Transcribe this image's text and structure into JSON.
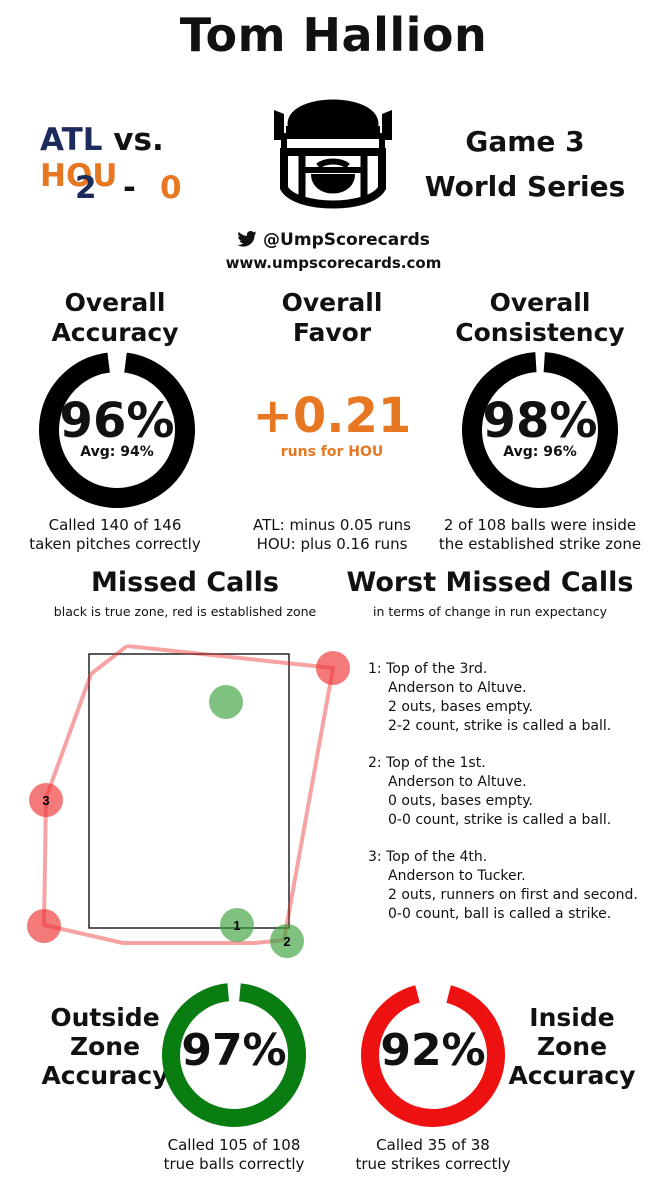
{
  "title": "Tom Hallion",
  "matchup": {
    "away": "ATL",
    "vs": "vs.",
    "home": "HOU",
    "away_score": "2",
    "dash": "-",
    "home_score": "0",
    "away_color": "#1d2a5c",
    "home_color": "#e87722"
  },
  "game": {
    "line1": "Game 3",
    "line2": "World Series"
  },
  "social": {
    "handle": "@UmpScorecards",
    "website": "www.umpscorecards.com",
    "icon": "twitter-bird-icon"
  },
  "accuracy": {
    "title_line1": "Overall",
    "title_line2": "Accuracy",
    "value": "96%",
    "avg": "Avg: 94%",
    "caption_line1": "Called 140 of 146",
    "caption_line2": "taken pitches correctly",
    "fraction": 0.96
  },
  "favor": {
    "title_line1": "Overall",
    "title_line2": "Favor",
    "value": "+0.21",
    "unit": "runs for HOU",
    "caption_line1": "ATL: minus 0.05 runs",
    "caption_line2": "HOU: plus 0.16 runs"
  },
  "consistency": {
    "title_line1": "Overall",
    "title_line2": "Consistency",
    "value": "98%",
    "avg": "Avg: 96%",
    "caption_line1": "2 of 108 balls were inside",
    "caption_line2": "the established strike zone",
    "fraction": 0.98
  },
  "missed_calls": {
    "title": "Missed Calls",
    "subtitle": "black is true zone, red is established zone"
  },
  "worst_missed": {
    "title": "Worst Missed Calls",
    "subtitle": "in terms of change in run expectancy",
    "items": [
      {
        "num": "1:",
        "l1": "Top of the 3rd.",
        "l2": "Anderson to Altuve.",
        "l3": "2 outs, bases empty.",
        "l4": "2-2 count, strike is called a ball."
      },
      {
        "num": "2:",
        "l1": "Top of the 1st.",
        "l2": "Anderson to Altuve.",
        "l3": "0 outs, bases empty.",
        "l4": "0-0 count, strike is called a ball."
      },
      {
        "num": "3:",
        "l1": "Top of the 4th.",
        "l2": "Anderson to Tucker.",
        "l3": "2 outs, runners on first and second.",
        "l4": "0-0 count, ball is called a strike."
      }
    ]
  },
  "pitch_labels": {
    "p1": "1",
    "p2": "2",
    "p3": "3"
  },
  "outside_zone": {
    "title_line1": "Outside",
    "title_line2": "Zone",
    "title_line3": "Accuracy",
    "value": "97%",
    "caption_line1": "Called 105 of 108",
    "caption_line2": "true balls correctly",
    "fraction": 0.97,
    "color": "#0a7d12"
  },
  "inside_zone": {
    "title_line1": "Inside",
    "title_line2": "Zone",
    "title_line3": "Accuracy",
    "value": "92%",
    "caption_line1": "Called 35 of 38",
    "caption_line2": "true strikes correctly",
    "fraction": 0.92,
    "color": "#ee1111"
  },
  "colors": {
    "missed_red": "#ee3333",
    "missed_green": "#3aa13a",
    "zone_black": "#000000"
  }
}
